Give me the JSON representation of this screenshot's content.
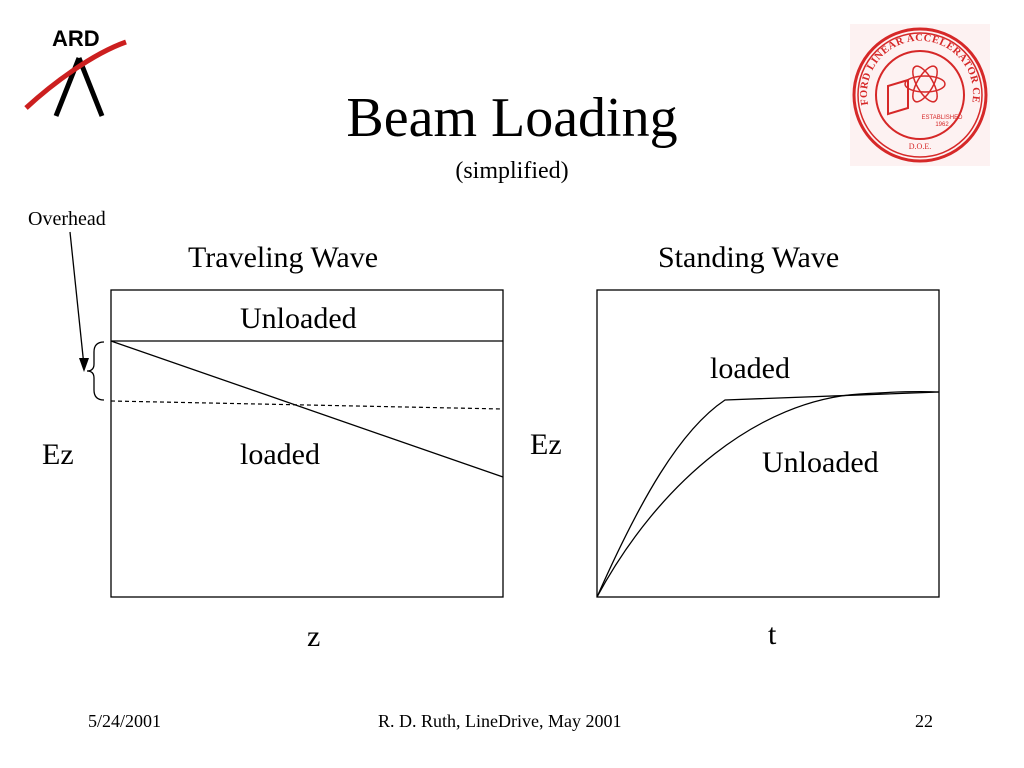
{
  "slide": {
    "title": "Beam Loading",
    "subtitle": "(simplified)"
  },
  "logos": {
    "left": {
      "text": "ARD",
      "accent": "#cc1f1f"
    },
    "right": {
      "ring_text": "STANFORD LINEAR ACCELERATOR CENTER",
      "established": "ESTABLISHED",
      "year": "1962",
      "dept": "D.O.E.",
      "color": "#d62828"
    }
  },
  "annotation": {
    "overhead": "Overhead"
  },
  "traveling": {
    "heading": "Traveling Wave",
    "y_axis": "Ez",
    "x_axis": "z",
    "unloaded": "Unloaded",
    "loaded": "loaded"
  },
  "standing": {
    "heading": "Standing Wave",
    "y_axis": "Ez",
    "x_axis": "t",
    "loaded": "loaded",
    "unloaded": "Unloaded"
  },
  "footer": {
    "date": "5/24/2001",
    "center": "R. D. Ruth, LineDrive, May 2001",
    "page": "22"
  }
}
